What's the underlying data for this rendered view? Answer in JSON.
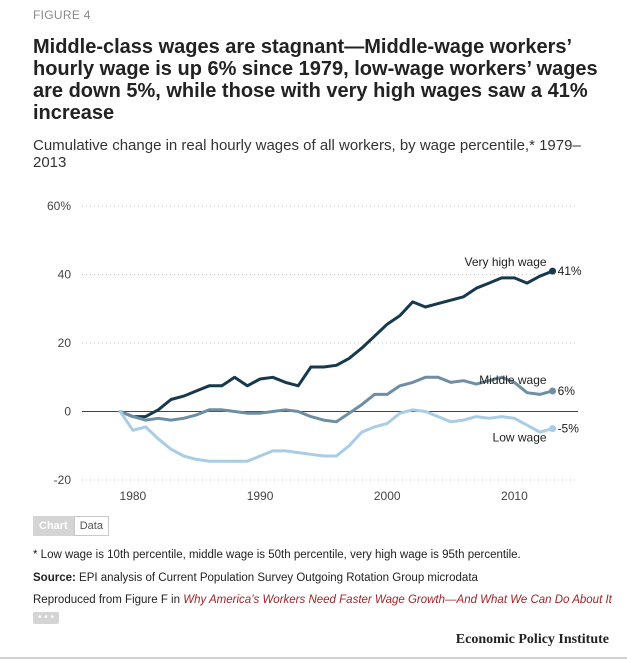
{
  "figure_label": "FIGURE 4",
  "title": "Middle-class wages are stagnant—Middle-wage workers’ hourly wage is up 6% since 1979, low-wage workers’ wages are down 5%, while those with very high wages saw a 41% increase",
  "subtitle": "Cumulative change in real hourly wages of all workers, by wage percentile,* 1979–2013",
  "tabs": {
    "chart": "Chart",
    "data": "Data"
  },
  "footnote": "* Low wage is 10th percentile, middle wage is 50th percentile, very high wage is 95th percentile.",
  "source_label": "Source:",
  "source_text": "EPI analysis of Current Population Survey Outgoing Rotation Group microdata",
  "reproduced_prefix": "Reproduced from Figure F in",
  "reproduced_link": "Why America’s Workers Need Faster Wage Growth—And What We Can Do About It",
  "more_label": "• • •",
  "publisher": "Economic Policy Institute",
  "colors": {
    "very_high": "#16394d",
    "middle": "#6e8ea3",
    "low": "#a8cde4",
    "zero": "#444444",
    "grid": "#c8c8c8"
  },
  "chart_data": {
    "type": "line",
    "xlim": [
      1976,
      2015
    ],
    "ylim": [
      -20,
      60
    ],
    "yticks": [
      60,
      40,
      20,
      0,
      -20
    ],
    "ytick_labels": [
      "60%",
      "40",
      "20",
      "0",
      "-20"
    ],
    "xticks": [
      1980,
      1990,
      2000,
      2010
    ],
    "xtick_labels": [
      "1980",
      "1990",
      "2000",
      "2010"
    ],
    "grid": "horizontal dotted",
    "x": [
      1979,
      1980,
      1981,
      1982,
      1983,
      1984,
      1985,
      1986,
      1987,
      1988,
      1989,
      1990,
      1991,
      1992,
      1993,
      1994,
      1995,
      1996,
      1997,
      1998,
      1999,
      2000,
      2001,
      2002,
      2003,
      2004,
      2005,
      2006,
      2007,
      2008,
      2009,
      2010,
      2011,
      2012,
      2013
    ],
    "series": [
      {
        "name": "Very high wage",
        "end_label": "41%",
        "color": "#16394d",
        "values": [
          0,
          -1.5,
          -1.5,
          0.5,
          3.5,
          4.5,
          6,
          7.5,
          7.5,
          10,
          7.5,
          9.5,
          10,
          8.5,
          7.5,
          13,
          13,
          13.5,
          15.5,
          18.5,
          22,
          25.5,
          28,
          32,
          30.5,
          31.5,
          32.5,
          33.5,
          36,
          37.5,
          39,
          39,
          37.5,
          39.5,
          41
        ]
      },
      {
        "name": "Middle wage",
        "end_label": "6%",
        "color": "#6e8ea3",
        "values": [
          0,
          -1.5,
          -2.5,
          -2,
          -2.5,
          -2,
          -1,
          0.5,
          0.5,
          0,
          -0.5,
          -0.5,
          0,
          0.5,
          0,
          -1.5,
          -2.5,
          -3,
          -0.5,
          2,
          5,
          5,
          7.5,
          8.5,
          10,
          10,
          8.5,
          9,
          8,
          9,
          10,
          8.5,
          5.5,
          5,
          6
        ]
      },
      {
        "name": "Low wage",
        "end_label": "-5%",
        "color": "#a8cde4",
        "values": [
          0,
          -5.5,
          -4.5,
          -8,
          -11,
          -13,
          -14,
          -14.5,
          -14.5,
          -14.5,
          -14.5,
          -13,
          -11.5,
          -11.5,
          -12,
          -12.5,
          -13,
          -13,
          -10,
          -6,
          -4.5,
          -3.5,
          -0.5,
          0.5,
          0,
          -1.5,
          -3,
          -2.5,
          -1.5,
          -2,
          -1.5,
          -2,
          -4,
          -6,
          -5
        ]
      }
    ]
  }
}
